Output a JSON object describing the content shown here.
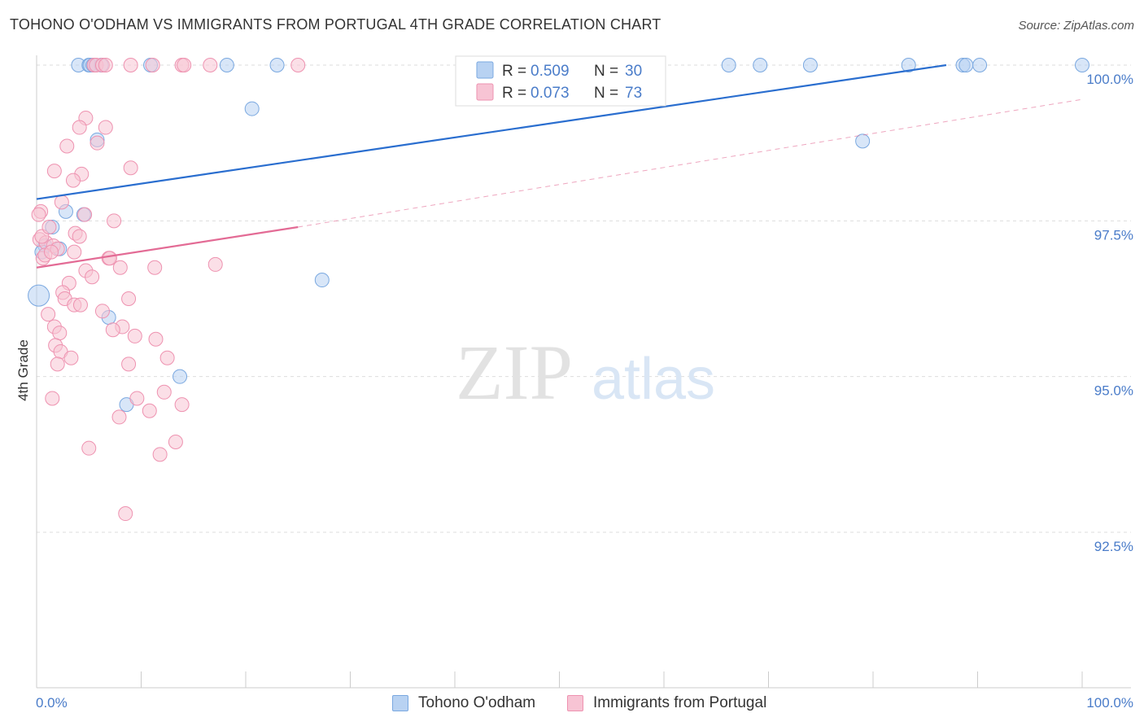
{
  "header": {
    "title": "TOHONO O'ODHAM VS IMMIGRANTS FROM PORTUGAL 4TH GRADE CORRELATION CHART",
    "source": "Source: ZipAtlas.com"
  },
  "watermark": {
    "zip": "ZIP",
    "atlas": "atlas"
  },
  "colors": {
    "blue_fill": "#b8d2f2",
    "blue_stroke": "#7aa8e0",
    "blue_line": "#2a6ecf",
    "pink_fill": "#f7c4d4",
    "pink_stroke": "#ee92b0",
    "pink_line": "#e36b95",
    "axis_label": "#4a7cc9",
    "grid": "#dddddd"
  },
  "chart_data": {
    "type": "scatter",
    "title": "TOHONO O'ODHAM VS IMMIGRANTS FROM PORTUGAL 4TH GRADE CORRELATION CHART",
    "xlabel": "",
    "ylabel": "4th Grade",
    "xlim": [
      0,
      100
    ],
    "ylim": [
      90.3,
      100.45
    ],
    "x_tick_labels": [
      "0.0%",
      "100.0%"
    ],
    "y_ticks": [
      {
        "value": 100.0,
        "label": "100.0%"
      },
      {
        "value": 97.5,
        "label": "97.5%"
      },
      {
        "value": 95.0,
        "label": "95.0%"
      },
      {
        "value": 92.5,
        "label": "92.5%"
      }
    ],
    "legend": [
      {
        "r_label": "R =",
        "r_value": "0.509",
        "n_label": "N =",
        "n_value": "30"
      },
      {
        "r_label": "R =",
        "r_value": "0.073",
        "n_label": "N =",
        "n_value": "73"
      }
    ],
    "series": [
      {
        "name": "Tohono O'odham",
        "color": "blue",
        "trend": {
          "x0": 0,
          "y0": 97.85,
          "x1": 87,
          "y1": 100.0,
          "dashed_to_x": null
        },
        "points": [
          {
            "x": 4.0,
            "y": 100.0
          },
          {
            "x": 5.0,
            "y": 100.0
          },
          {
            "x": 5.1,
            "y": 100.0
          },
          {
            "x": 5.4,
            "y": 100.0
          },
          {
            "x": 6.2,
            "y": 100.0
          },
          {
            "x": 10.9,
            "y": 100.0
          },
          {
            "x": 18.2,
            "y": 100.0
          },
          {
            "x": 23.0,
            "y": 100.0
          },
          {
            "x": 66.2,
            "y": 100.0
          },
          {
            "x": 69.2,
            "y": 100.0
          },
          {
            "x": 74.0,
            "y": 100.0
          },
          {
            "x": 83.4,
            "y": 100.0
          },
          {
            "x": 88.6,
            "y": 100.0
          },
          {
            "x": 88.9,
            "y": 100.0
          },
          {
            "x": 90.2,
            "y": 100.0
          },
          {
            "x": 100.0,
            "y": 100.0
          },
          {
            "x": 20.6,
            "y": 99.3
          },
          {
            "x": 5.8,
            "y": 98.8
          },
          {
            "x": 79.0,
            "y": 98.78
          },
          {
            "x": 2.8,
            "y": 97.65
          },
          {
            "x": 4.5,
            "y": 97.6
          },
          {
            "x": 1.5,
            "y": 97.4
          },
          {
            "x": 0.8,
            "y": 97.1
          },
          {
            "x": 2.2,
            "y": 97.05
          },
          {
            "x": 27.3,
            "y": 96.55
          },
          {
            "x": 0.2,
            "y": 96.3
          },
          {
            "x": 6.9,
            "y": 95.95
          },
          {
            "x": 13.7,
            "y": 95.0
          },
          {
            "x": 8.6,
            "y": 94.55
          },
          {
            "x": 0.5,
            "y": 97.0
          }
        ]
      },
      {
        "name": "Immigrants from Portugal",
        "color": "pink",
        "trend": {
          "x0": 0,
          "y0": 96.75,
          "x1": 25,
          "y1": 97.4,
          "dashed_to_x": 100,
          "dashed_y": 99.45
        },
        "points": [
          {
            "x": 5.5,
            "y": 100.0
          },
          {
            "x": 5.7,
            "y": 100.0
          },
          {
            "x": 6.3,
            "y": 100.0
          },
          {
            "x": 6.6,
            "y": 100.0
          },
          {
            "x": 9.0,
            "y": 100.0
          },
          {
            "x": 11.1,
            "y": 100.0
          },
          {
            "x": 13.9,
            "y": 100.0
          },
          {
            "x": 14.1,
            "y": 100.0
          },
          {
            "x": 16.6,
            "y": 100.0
          },
          {
            "x": 25.0,
            "y": 100.0
          },
          {
            "x": 4.7,
            "y": 99.15
          },
          {
            "x": 4.1,
            "y": 99.0
          },
          {
            "x": 6.6,
            "y": 99.0
          },
          {
            "x": 5.8,
            "y": 98.75
          },
          {
            "x": 2.9,
            "y": 98.7
          },
          {
            "x": 9.0,
            "y": 98.35
          },
          {
            "x": 1.7,
            "y": 98.3
          },
          {
            "x": 4.3,
            "y": 98.25
          },
          {
            "x": 3.5,
            "y": 98.15
          },
          {
            "x": 2.4,
            "y": 97.8
          },
          {
            "x": 0.4,
            "y": 97.65
          },
          {
            "x": 4.6,
            "y": 97.6
          },
          {
            "x": 7.4,
            "y": 97.5
          },
          {
            "x": 0.3,
            "y": 97.2
          },
          {
            "x": 0.9,
            "y": 97.15
          },
          {
            "x": 1.6,
            "y": 97.1
          },
          {
            "x": 3.7,
            "y": 97.3
          },
          {
            "x": 4.1,
            "y": 97.25
          },
          {
            "x": 0.6,
            "y": 96.9
          },
          {
            "x": 2.0,
            "y": 97.05
          },
          {
            "x": 3.6,
            "y": 97.0
          },
          {
            "x": 6.9,
            "y": 96.9
          },
          {
            "x": 7.0,
            "y": 96.9
          },
          {
            "x": 8.0,
            "y": 96.75
          },
          {
            "x": 11.3,
            "y": 96.75
          },
          {
            "x": 17.1,
            "y": 96.8
          },
          {
            "x": 4.7,
            "y": 96.7
          },
          {
            "x": 5.3,
            "y": 96.6
          },
          {
            "x": 3.1,
            "y": 96.5
          },
          {
            "x": 2.5,
            "y": 96.35
          },
          {
            "x": 2.7,
            "y": 96.25
          },
          {
            "x": 3.6,
            "y": 96.15
          },
          {
            "x": 4.2,
            "y": 96.15
          },
          {
            "x": 8.8,
            "y": 96.25
          },
          {
            "x": 6.3,
            "y": 96.05
          },
          {
            "x": 1.1,
            "y": 96.0
          },
          {
            "x": 1.7,
            "y": 95.8
          },
          {
            "x": 8.2,
            "y": 95.8
          },
          {
            "x": 2.2,
            "y": 95.7
          },
          {
            "x": 7.3,
            "y": 95.75
          },
          {
            "x": 9.4,
            "y": 95.65
          },
          {
            "x": 11.4,
            "y": 95.6
          },
          {
            "x": 1.8,
            "y": 95.5
          },
          {
            "x": 2.3,
            "y": 95.4
          },
          {
            "x": 3.3,
            "y": 95.3
          },
          {
            "x": 12.5,
            "y": 95.3
          },
          {
            "x": 2.0,
            "y": 95.2
          },
          {
            "x": 8.8,
            "y": 95.2
          },
          {
            "x": 12.2,
            "y": 94.75
          },
          {
            "x": 1.5,
            "y": 94.65
          },
          {
            "x": 9.6,
            "y": 94.65
          },
          {
            "x": 10.8,
            "y": 94.45
          },
          {
            "x": 13.9,
            "y": 94.55
          },
          {
            "x": 7.9,
            "y": 94.35
          },
          {
            "x": 13.3,
            "y": 93.95
          },
          {
            "x": 5.0,
            "y": 93.85
          },
          {
            "x": 11.8,
            "y": 93.75
          },
          {
            "x": 8.5,
            "y": 92.8
          },
          {
            "x": 0.5,
            "y": 97.25
          },
          {
            "x": 1.2,
            "y": 97.4
          },
          {
            "x": 0.8,
            "y": 96.95
          },
          {
            "x": 1.4,
            "y": 97.0
          },
          {
            "x": 0.2,
            "y": 97.6
          }
        ]
      }
    ]
  },
  "bottom_legend": [
    {
      "label": "Tohono O'odham"
    },
    {
      "label": "Immigrants from Portugal"
    }
  ]
}
